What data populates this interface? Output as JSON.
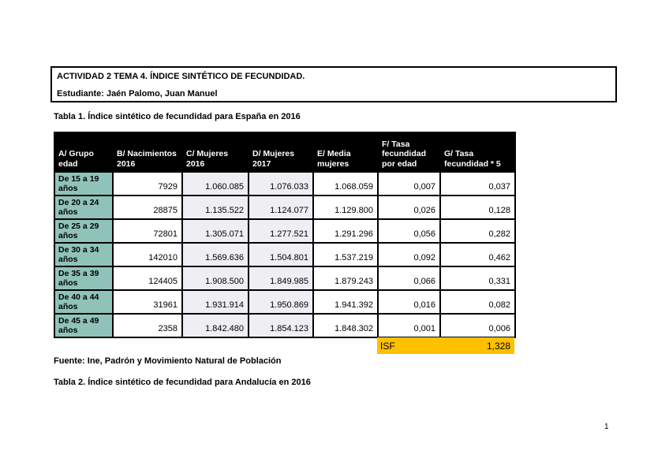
{
  "page": {
    "header_box": {
      "title": "ACTIVIDAD 2 TEMA 4. ÍNDICE SINTÉTICO DE FECUNDIDAD.",
      "student": "Estudiante: Jaén Palomo, Juan Manuel"
    },
    "table1_caption": "Tabla 1. Índice sintético de fecundidad para España en 2016",
    "source_line": "Fuente: Ine, Padrón y Movimiento Natural de Población",
    "table2_caption": "Tabla 2. Índice sintético de fecundidad para Andalucía en 2016",
    "page_number": "1"
  },
  "table1": {
    "columns": [
      "A/ Grupo edad",
      "B/ Nacimientos 2016",
      "C/ Mujeres 2016",
      "D/ Mujeres 2017",
      "E/ Media mujeres",
      "F/ Tasa fecundidad por edad",
      "G/ Tasa fecundidad * 5"
    ],
    "rows": [
      [
        "De 15 a 19 años",
        "7929",
        "1.060.085",
        "1.076.033",
        "1.068.059",
        "0,007",
        "0,037"
      ],
      [
        "De 20 a 24 años",
        "28875",
        "1.135.522",
        "1.124.077",
        "1.129.800",
        "0,026",
        "0,128"
      ],
      [
        "De 25 a 29 años",
        "72801",
        "1.305.071",
        "1.277.521",
        "1.291.296",
        "0,056",
        "0,282"
      ],
      [
        "De 30 a 34 años",
        "142010",
        "1.569.636",
        "1.504.801",
        "1.537.219",
        "0,092",
        "0,462"
      ],
      [
        "De 35 a 39 años",
        "124405",
        "1.908.500",
        "1.849.985",
        "1.879.243",
        "0,066",
        "0,331"
      ],
      [
        "De 40 a 44 años",
        "31961",
        "1.931.914",
        "1.950.869",
        "1.941.392",
        "0,016",
        "0,082"
      ],
      [
        "De 45 a 49 años",
        "2358",
        "1.842.480",
        "1.854.123",
        "1.848.302",
        "0,001",
        "0,006"
      ]
    ],
    "isf_label": "ISF",
    "isf_value": "1,328"
  },
  "colors": {
    "table_header_bg": "#000000",
    "table_header_text": "#ffffff",
    "row_label_bg": "#8fc3ba",
    "shaded_column_bg": "#efeff3",
    "isf_highlight_bg": "#ffc000",
    "text": "#000000"
  }
}
